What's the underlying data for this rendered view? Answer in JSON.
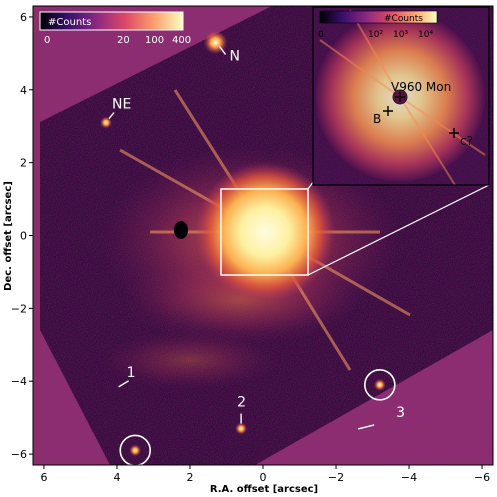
{
  "chart_data": {
    "type": "image",
    "xlabel": "R.A. offset [arcsec]",
    "ylabel": "Dec. offset [arcsec]",
    "xlim": [
      6.3,
      -6.3
    ],
    "ylim": [
      -6.3,
      6.3
    ],
    "xticks": [
      6,
      4,
      2,
      0,
      -2,
      -4,
      -6
    ],
    "xtick_labels": [
      "6",
      "4",
      "2",
      "0",
      "−2",
      "−4",
      "−6"
    ],
    "yticks": [
      6,
      4,
      2,
      0,
      -2,
      -4,
      -6
    ],
    "ytick_labels": [
      "6",
      "4",
      "2",
      "0",
      "−2",
      "−4",
      "−6"
    ],
    "colorbar": {
      "label": "#Counts",
      "tick_labels": [
        "0",
        "20",
        "100",
        "400"
      ],
      "colormap": [
        "#000004",
        "#3b0f70",
        "#8c2981",
        "#de4968",
        "#fe9f6d",
        "#fcfdbf"
      ]
    },
    "sources": [
      {
        "label": "N",
        "x": 1.3,
        "y": 5.3
      },
      {
        "label": "NE",
        "x": 4.3,
        "y": 3.1
      },
      {
        "label": "1",
        "x": 3.9,
        "y": -4.1
      },
      {
        "label": "2",
        "x": 0.6,
        "y": -5.3
      },
      {
        "label": "3",
        "x": -3.1,
        "y": -5.2
      },
      {
        "x": 3.5,
        "y": -5.9,
        "circled": true
      },
      {
        "x": -3.2,
        "y": -4.1,
        "circled": true
      }
    ],
    "zoom_box": {
      "x": [
        1.2,
        -1.2
      ],
      "y": [
        -1.2,
        1.2
      ]
    },
    "inset": {
      "colorbar": {
        "label": "#Counts",
        "tick_labels": [
          "0",
          "10²",
          "10³",
          "10⁴"
        ]
      },
      "labels": [
        {
          "text": "V960 Mon"
        },
        {
          "text": "B"
        },
        {
          "text": "c?"
        }
      ]
    }
  }
}
